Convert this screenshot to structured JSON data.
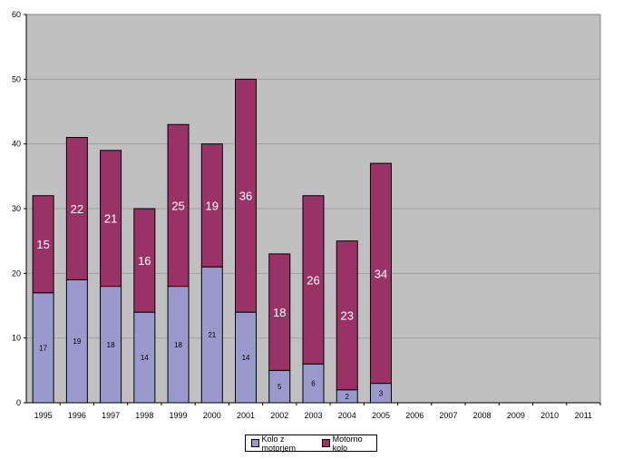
{
  "chart_data": {
    "type": "bar",
    "stacked": true,
    "categories": [
      "1995",
      "1996",
      "1997",
      "1998",
      "1999",
      "2000",
      "2001",
      "2002",
      "2003",
      "2004",
      "2005",
      "2006",
      "2007",
      "2008",
      "2009",
      "2010",
      "2011"
    ],
    "series": [
      {
        "name": "Kolo z motorjem",
        "color": "#9999cc",
        "values": [
          17,
          19,
          18,
          14,
          18,
          21,
          14,
          5,
          6,
          2,
          3,
          null,
          null,
          null,
          null,
          null,
          null
        ]
      },
      {
        "name": "Motorno kolo",
        "color": "#993366",
        "values": [
          15,
          22,
          21,
          16,
          25,
          19,
          36,
          18,
          26,
          23,
          34,
          null,
          null,
          null,
          null,
          null,
          null
        ]
      }
    ],
    "ylim": [
      0,
      60
    ],
    "yticks": [
      0,
      10,
      20,
      30,
      40,
      50,
      60
    ],
    "grid": true,
    "plot_background": "#c0c0c0",
    "legend_position": "bottom"
  }
}
